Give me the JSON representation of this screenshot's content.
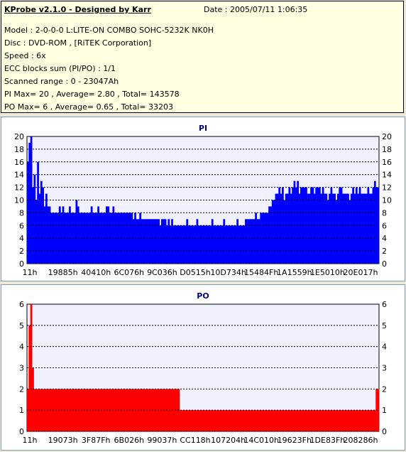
{
  "header": {
    "title": "KProbe v2.1.0 - Designed by Karr",
    "date": "Date : 2005/07/11 1:06:35",
    "model": "Model : 2-0-0-0 L:LITE-ON COMBO SOHC-5232K NK0H",
    "disc": "Disc : DVD-ROM ,  [RiTEK Corporation]",
    "speed": "Speed : 6x",
    "ecc": "ECC blocks sum (PI/PO) : 1/1",
    "range": "Scanned range : 0 - 23047Ah",
    "pi_stats": "PI Max= 20 , Average= 2.80 , Total= 143578",
    "po_stats": "PO Max= 6 , Average= 0.65 , Total= 33203"
  },
  "colors": {
    "pi": "#0000ff",
    "po": "#ff0000",
    "plot_bg": "#f0f0ff",
    "grid": "#000000"
  },
  "chart_data": [
    {
      "type": "bar",
      "title": "PI",
      "xlabel": "",
      "ylabel": "",
      "ylim": [
        0,
        20
      ],
      "yticks": [
        0,
        2,
        4,
        6,
        8,
        10,
        12,
        14,
        16,
        18,
        20
      ],
      "x_tick_labels": [
        "11h",
        "19885h",
        "40410h",
        "6C076h",
        "9C036h",
        "D0515h",
        "10D734h",
        "15484Fh",
        "1A1559h",
        "1E5010h",
        "20E017h"
      ],
      "grid": true,
      "values": [
        16,
        19,
        20,
        12,
        14,
        10,
        16,
        11,
        13,
        12,
        9,
        11,
        9,
        9,
        8,
        8,
        8,
        8,
        8,
        9,
        8,
        9,
        8,
        8,
        8,
        9,
        8,
        8,
        8,
        10,
        9,
        8,
        8,
        8,
        8,
        8,
        8,
        8,
        9,
        8,
        8,
        8,
        9,
        8,
        8,
        8,
        8,
        9,
        9,
        8,
        8,
        9,
        8,
        8,
        8,
        8,
        8,
        8,
        8,
        8,
        8,
        8,
        8,
        7,
        8,
        7,
        7,
        8,
        7,
        7,
        7,
        7,
        7,
        7,
        7,
        7,
        7,
        7,
        7,
        6,
        7,
        7,
        7,
        6,
        7,
        6,
        7,
        6,
        6,
        6,
        6,
        6,
        6,
        6,
        6,
        7,
        6,
        6,
        6,
        6,
        6,
        7,
        6,
        6,
        6,
        6,
        6,
        6,
        6,
        6,
        7,
        6,
        6,
        6,
        6,
        6,
        6,
        7,
        6,
        6,
        6,
        6,
        6,
        6,
        6,
        7,
        6,
        6,
        6,
        6,
        7,
        7,
        7,
        7,
        7,
        7,
        8,
        7,
        7,
        8,
        8,
        8,
        8,
        8,
        9,
        9,
        10,
        10,
        11,
        11,
        12,
        11,
        12,
        10,
        11,
        11,
        12,
        11,
        12,
        13,
        12,
        13,
        11,
        12,
        12,
        12,
        12,
        11,
        11,
        12,
        12,
        11,
        12,
        12,
        12,
        11,
        12,
        11,
        11,
        10,
        11,
        12,
        11,
        11,
        10,
        11,
        12,
        12,
        11,
        11,
        11,
        11,
        10,
        11,
        12,
        11,
        12,
        11,
        12,
        11,
        11,
        11,
        11,
        12,
        11,
        11,
        12,
        13,
        12,
        12
      ]
    },
    {
      "type": "bar",
      "title": "PO",
      "xlabel": "",
      "ylabel": "",
      "ylim": [
        0,
        6
      ],
      "yticks": [
        0,
        1,
        2,
        3,
        4,
        5,
        6
      ],
      "x_tick_labels": [
        "11h",
        "19073h",
        "3F87Fh",
        "6B026h",
        "99037h",
        "CC118h",
        "107204h",
        "14C010h",
        "19623Fh",
        "1DE83Fh",
        "208286h"
      ],
      "grid": true,
      "values": [
        2,
        5,
        6,
        3,
        2,
        2,
        2,
        2,
        2,
        2,
        2,
        2,
        2,
        2,
        2,
        2,
        2,
        2,
        2,
        2,
        2,
        2,
        2,
        2,
        2,
        2,
        2,
        2,
        2,
        2,
        2,
        2,
        2,
        2,
        2,
        2,
        2,
        2,
        2,
        2,
        2,
        2,
        2,
        2,
        2,
        2,
        2,
        2,
        2,
        2,
        2,
        2,
        2,
        2,
        2,
        2,
        2,
        2,
        2,
        2,
        2,
        2,
        2,
        2,
        2,
        2,
        2,
        2,
        2,
        2,
        2,
        2,
        2,
        2,
        2,
        2,
        2,
        2,
        2,
        2,
        2,
        2,
        2,
        2,
        2,
        2,
        2,
        2,
        2,
        2,
        2,
        1,
        1,
        1,
        1,
        1,
        1,
        1,
        1,
        1,
        1,
        1,
        1,
        1,
        1,
        1,
        1,
        1,
        1,
        1,
        1,
        1,
        1,
        1,
        1,
        1,
        1,
        1,
        1,
        1,
        1,
        1,
        1,
        1,
        1,
        1,
        1,
        1,
        1,
        1,
        1,
        1,
        1,
        1,
        1,
        1,
        1,
        1,
        1,
        1,
        1,
        1,
        1,
        1,
        1,
        1,
        1,
        1,
        1,
        1,
        1,
        1,
        1,
        1,
        1,
        1,
        1,
        1,
        1,
        1,
        1,
        1,
        1,
        1,
        1,
        1,
        1,
        1,
        1,
        1,
        1,
        1,
        1,
        1,
        1,
        1,
        1,
        1,
        1,
        1,
        1,
        1,
        1,
        1,
        1,
        1,
        1,
        1,
        1,
        1,
        1,
        1,
        1,
        1,
        1,
        1,
        1,
        1,
        1,
        1,
        1,
        1,
        1,
        1,
        1,
        1,
        1,
        1,
        2,
        2
      ]
    }
  ]
}
